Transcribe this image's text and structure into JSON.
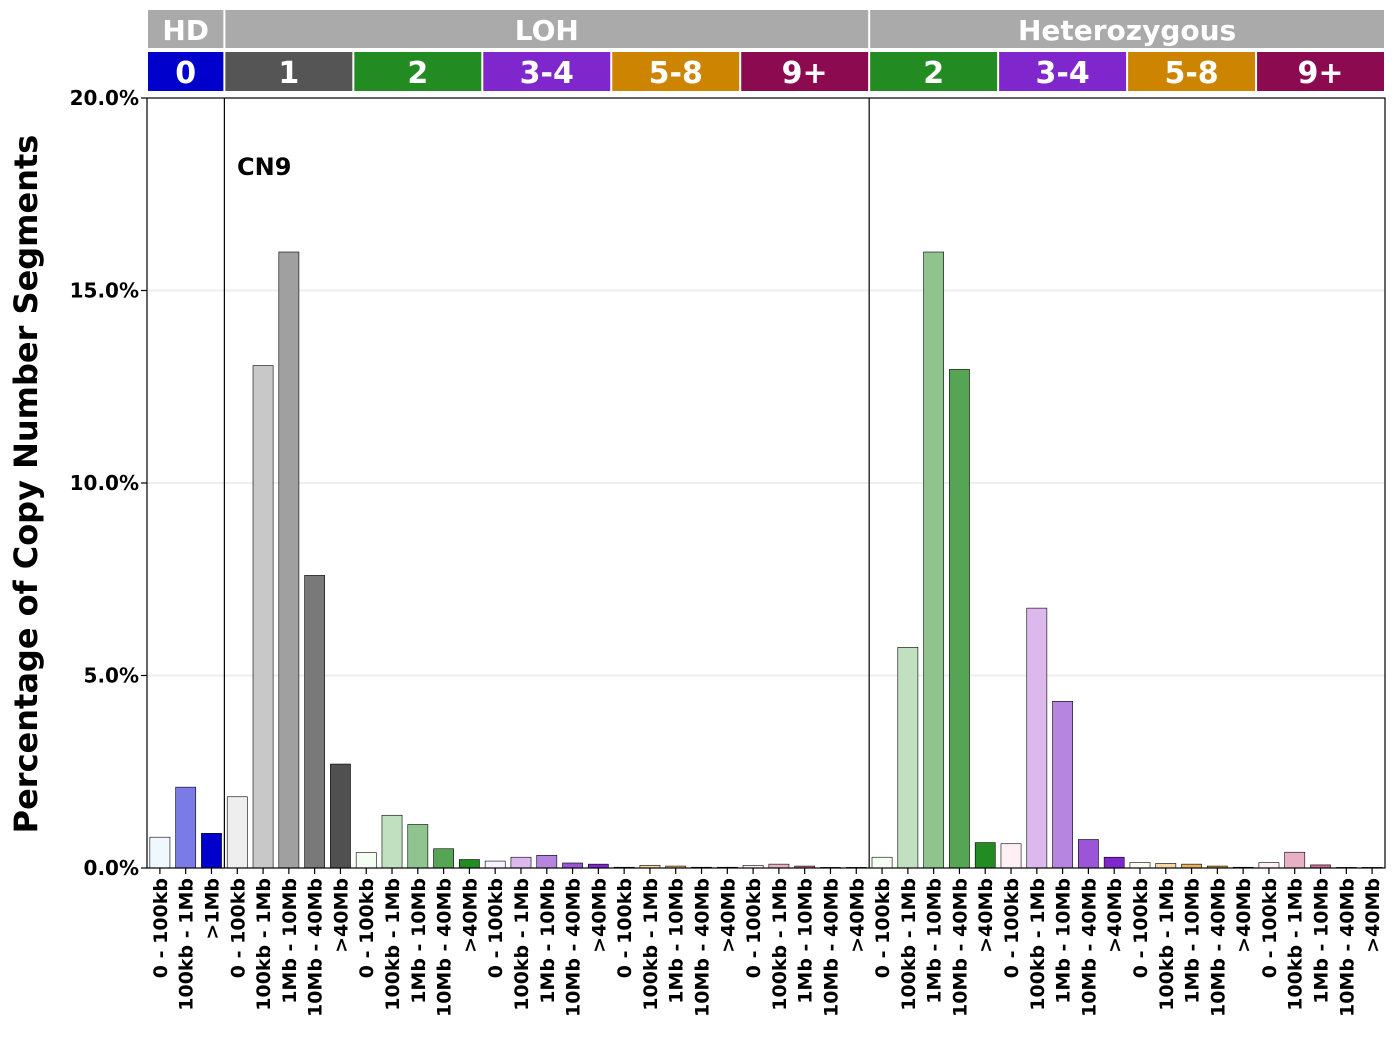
{
  "chart_data": {
    "type": "bar",
    "title": "",
    "annotation": "CN9",
    "ylabel": "Percentage of Copy Number Segments",
    "xlabel": "",
    "ylim": [
      0,
      20
    ],
    "yticks": [
      "0.0%",
      "5.0%",
      "10.0%",
      "15.0%",
      "20.0%"
    ],
    "ytick_values": [
      0,
      5,
      10,
      15,
      20
    ],
    "grid": "horizontal, light grey",
    "groups": [
      {
        "label": "HD",
        "color": "#aaaaaa"
      },
      {
        "label": "LOH",
        "color": "#aaaaaa"
      },
      {
        "label": "Heterozygous",
        "color": "#aaaaaa"
      }
    ],
    "cn_classes": [
      {
        "label": "0",
        "group": "HD",
        "color": "#0000cc"
      },
      {
        "label": "1",
        "group": "LOH",
        "color": "#555555"
      },
      {
        "label": "2",
        "group": "LOH",
        "color": "#228b22"
      },
      {
        "label": "3-4",
        "group": "LOH",
        "color": "#7f26cd"
      },
      {
        "label": "5-8",
        "group": "LOH",
        "color": "#cd8400"
      },
      {
        "label": "9+",
        "group": "LOH",
        "color": "#8b0a50"
      },
      {
        "label": "2",
        "group": "Heterozygous",
        "color": "#228b22"
      },
      {
        "label": "3-4",
        "group": "Heterozygous",
        "color": "#7f26cd"
      },
      {
        "label": "5-8",
        "group": "Heterozygous",
        "color": "#cd8400"
      },
      {
        "label": "9+",
        "group": "Heterozygous",
        "color": "#8b0a50"
      }
    ],
    "categories": [
      "0 - 100kb",
      "100kb - 1Mb",
      ">1Mb",
      "0 - 100kb",
      "100kb - 1Mb",
      "1Mb - 10Mb",
      "10Mb - 40Mb",
      ">40Mb",
      "0 - 100kb",
      "100kb - 1Mb",
      "1Mb - 10Mb",
      "10Mb - 40Mb",
      ">40Mb",
      "0 - 100kb",
      "100kb - 1Mb",
      "1Mb - 10Mb",
      "10Mb - 40Mb",
      ">40Mb",
      "0 - 100kb",
      "100kb - 1Mb",
      "1Mb - 10Mb",
      "10Mb - 40Mb",
      ">40Mb",
      "0 - 100kb",
      "100kb - 1Mb",
      "1Mb - 10Mb",
      "10Mb - 40Mb",
      ">40Mb",
      "0 - 100kb",
      "100kb - 1Mb",
      "1Mb - 10Mb",
      "10Mb - 40Mb",
      ">40Mb",
      "0 - 100kb",
      "100kb - 1Mb",
      "1Mb - 10Mb",
      "10Mb - 40Mb",
      ">40Mb",
      "0 - 100kb",
      "100kb - 1Mb",
      "1Mb - 10Mb",
      "10Mb - 40Mb",
      ">40Mb",
      "0 - 100kb",
      "100kb - 1Mb",
      "1Mb - 10Mb",
      "10Mb - 40Mb",
      ">40Mb"
    ],
    "cn_class_index": [
      0,
      0,
      0,
      1,
      1,
      1,
      1,
      1,
      2,
      2,
      2,
      2,
      2,
      3,
      3,
      3,
      3,
      3,
      4,
      4,
      4,
      4,
      4,
      5,
      5,
      5,
      5,
      5,
      6,
      6,
      6,
      6,
      6,
      7,
      7,
      7,
      7,
      7,
      8,
      8,
      8,
      8,
      8,
      9,
      9,
      9,
      9,
      9
    ],
    "values": [
      0.8,
      2.1,
      0.9,
      1.85,
      13.05,
      16.0,
      7.6,
      2.7,
      0.4,
      1.37,
      1.13,
      0.5,
      0.22,
      0.18,
      0.28,
      0.33,
      0.13,
      0.1,
      0.02,
      0.07,
      0.05,
      0.02,
      0.02,
      0.07,
      0.1,
      0.05,
      0.0,
      0.0,
      0.28,
      5.73,
      16.0,
      12.95,
      0.66,
      0.63,
      6.75,
      4.33,
      0.74,
      0.28,
      0.14,
      0.12,
      0.1,
      0.05,
      0.02,
      0.14,
      0.41,
      0.08,
      0.0,
      0.0
    ],
    "bar_colors": [
      "#f0f8ff",
      "#7b7be8",
      "#0000cc",
      "#eeeeee",
      "#c8c8c8",
      "#a0a0a0",
      "#797979",
      "#505050",
      "#f4fff4",
      "#c0e0c0",
      "#8fc48f",
      "#55a555",
      "#228b22",
      "#f8f0ff",
      "#dcb8ec",
      "#b585e0",
      "#9a55d9",
      "#7f26cd",
      "#fff7ea",
      "#f5d8a6",
      "#e6b25e",
      "#d99a2c",
      "#cd8400",
      "#fff0f5",
      "#e8b0c4",
      "#c86c93",
      "#a93a71",
      "#8b0a50",
      "#f4fff4",
      "#c0e0c0",
      "#8fc48f",
      "#55a555",
      "#228b22",
      "#fff0f5",
      "#dcb8ec",
      "#b585e0",
      "#9a55d9",
      "#7f26cd",
      "#fffaf4",
      "#f5d8a6",
      "#e6b25e",
      "#d99a2c",
      "#cd8400",
      "#fff0f5",
      "#e8b0c4",
      "#c86c93",
      "#a93a71",
      "#8b0a50"
    ],
    "separators_after_index": [
      2,
      27
    ]
  }
}
